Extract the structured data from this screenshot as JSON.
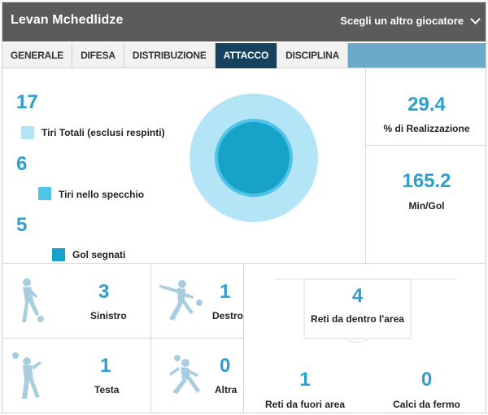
{
  "header": {
    "player_name": "Levan Mchedlidze",
    "switch_label": "Scegli un altro giocatore",
    "switch_icon": "chevron-down-icon"
  },
  "tabs": [
    {
      "label": "GENERALE",
      "active": false
    },
    {
      "label": "DIFESA",
      "active": false
    },
    {
      "label": "DISTRIBUZIONE",
      "active": false
    },
    {
      "label": "ATTACCO",
      "active": true
    },
    {
      "label": "DISCIPLINA",
      "active": false
    }
  ],
  "colors": {
    "header_bg": "#5b5b5b",
    "active_tab": "#17425f",
    "tab_strip_fill": "#6aa9c7",
    "accent_number": "#2d9fcd",
    "total_shots": "#b3e5f7",
    "on_target": "#4fc3e8",
    "goals": "#17a2c9",
    "silhouette": "#a8cde0"
  },
  "shots": {
    "total": {
      "value": "17",
      "label": "Tiri Totali (esclusi respinti)"
    },
    "on_target": {
      "value": "6",
      "label": "Tiri nello specchio"
    },
    "goals": {
      "value": "5",
      "label": "Gol segnati"
    }
  },
  "stats": {
    "conversion": {
      "value": "29.4",
      "label": "% di Realizzazione"
    },
    "min_per_goal": {
      "value": "165.2",
      "label": "Min/Gol"
    }
  },
  "goal_types": {
    "left": {
      "value": "3",
      "label": "Sinistro",
      "icon": "left-foot-kick-icon"
    },
    "right": {
      "value": "1",
      "label": "Destro",
      "icon": "right-foot-kick-icon"
    },
    "head": {
      "value": "1",
      "label": "Testa",
      "icon": "header-icon"
    },
    "other": {
      "value": "0",
      "label": "Altra",
      "icon": "other-goal-icon"
    }
  },
  "goal_locations": {
    "inside_box": {
      "value": "4",
      "label": "Reti da dentro l'area"
    },
    "outside_box": {
      "value": "1",
      "label": "Reti da fuori area"
    },
    "set_pieces": {
      "value": "0",
      "label": "Calci da fermo"
    }
  }
}
